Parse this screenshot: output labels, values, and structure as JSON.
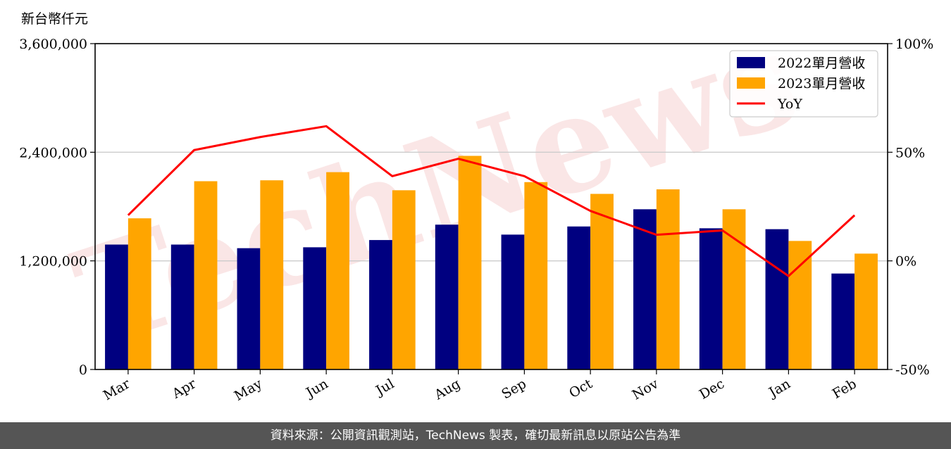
{
  "footer": {
    "source": "資料來源：公開資訊觀測站，TechNews 製表，確切最新訊息以原站公告為準"
  },
  "watermark": {
    "text": "TechNews",
    "color": "#f2b8b8"
  },
  "chart_data": {
    "type": "bar",
    "title": "",
    "ylabel": "新台幣仟元",
    "categories": [
      "Mar",
      "Apr",
      "May",
      "Jun",
      "Jul",
      "Aug",
      "Sep",
      "Oct",
      "Nov",
      "Dec",
      "Jan",
      "Feb"
    ],
    "series": [
      {
        "name": "2022單月營收",
        "color": "#000080",
        "axis": "left",
        "kind": "bar",
        "values": [
          1380000,
          1380000,
          1340000,
          1350000,
          1430000,
          1600000,
          1490000,
          1580000,
          1770000,
          1560000,
          1550000,
          1060000
        ]
      },
      {
        "name": "2023單月營收",
        "color": "#ffa500",
        "axis": "left",
        "kind": "bar",
        "values": [
          1670000,
          2080000,
          2090000,
          2180000,
          1980000,
          2360000,
          2070000,
          1940000,
          1990000,
          1770000,
          1420000,
          1280000
        ]
      },
      {
        "name": "YoY",
        "color": "#ff0000",
        "axis": "right",
        "kind": "line",
        "unit": "%",
        "values": [
          21,
          51,
          57,
          62,
          39,
          47,
          39,
          23,
          12,
          14,
          -7,
          21
        ]
      }
    ],
    "y_left": {
      "ylim": [
        0,
        3600000
      ],
      "ticks": [
        "0",
        "1,200,000",
        "2,400,000",
        "3,600,000"
      ],
      "tick_values": [
        0,
        1200000,
        2400000,
        3600000
      ]
    },
    "y_right": {
      "ylim": [
        -50,
        100
      ],
      "ticks": [
        "-50%",
        "0%",
        "50%",
        "100%"
      ],
      "tick_values": [
        -50,
        0,
        50,
        100
      ]
    },
    "grid": true,
    "legend": "top-right"
  }
}
